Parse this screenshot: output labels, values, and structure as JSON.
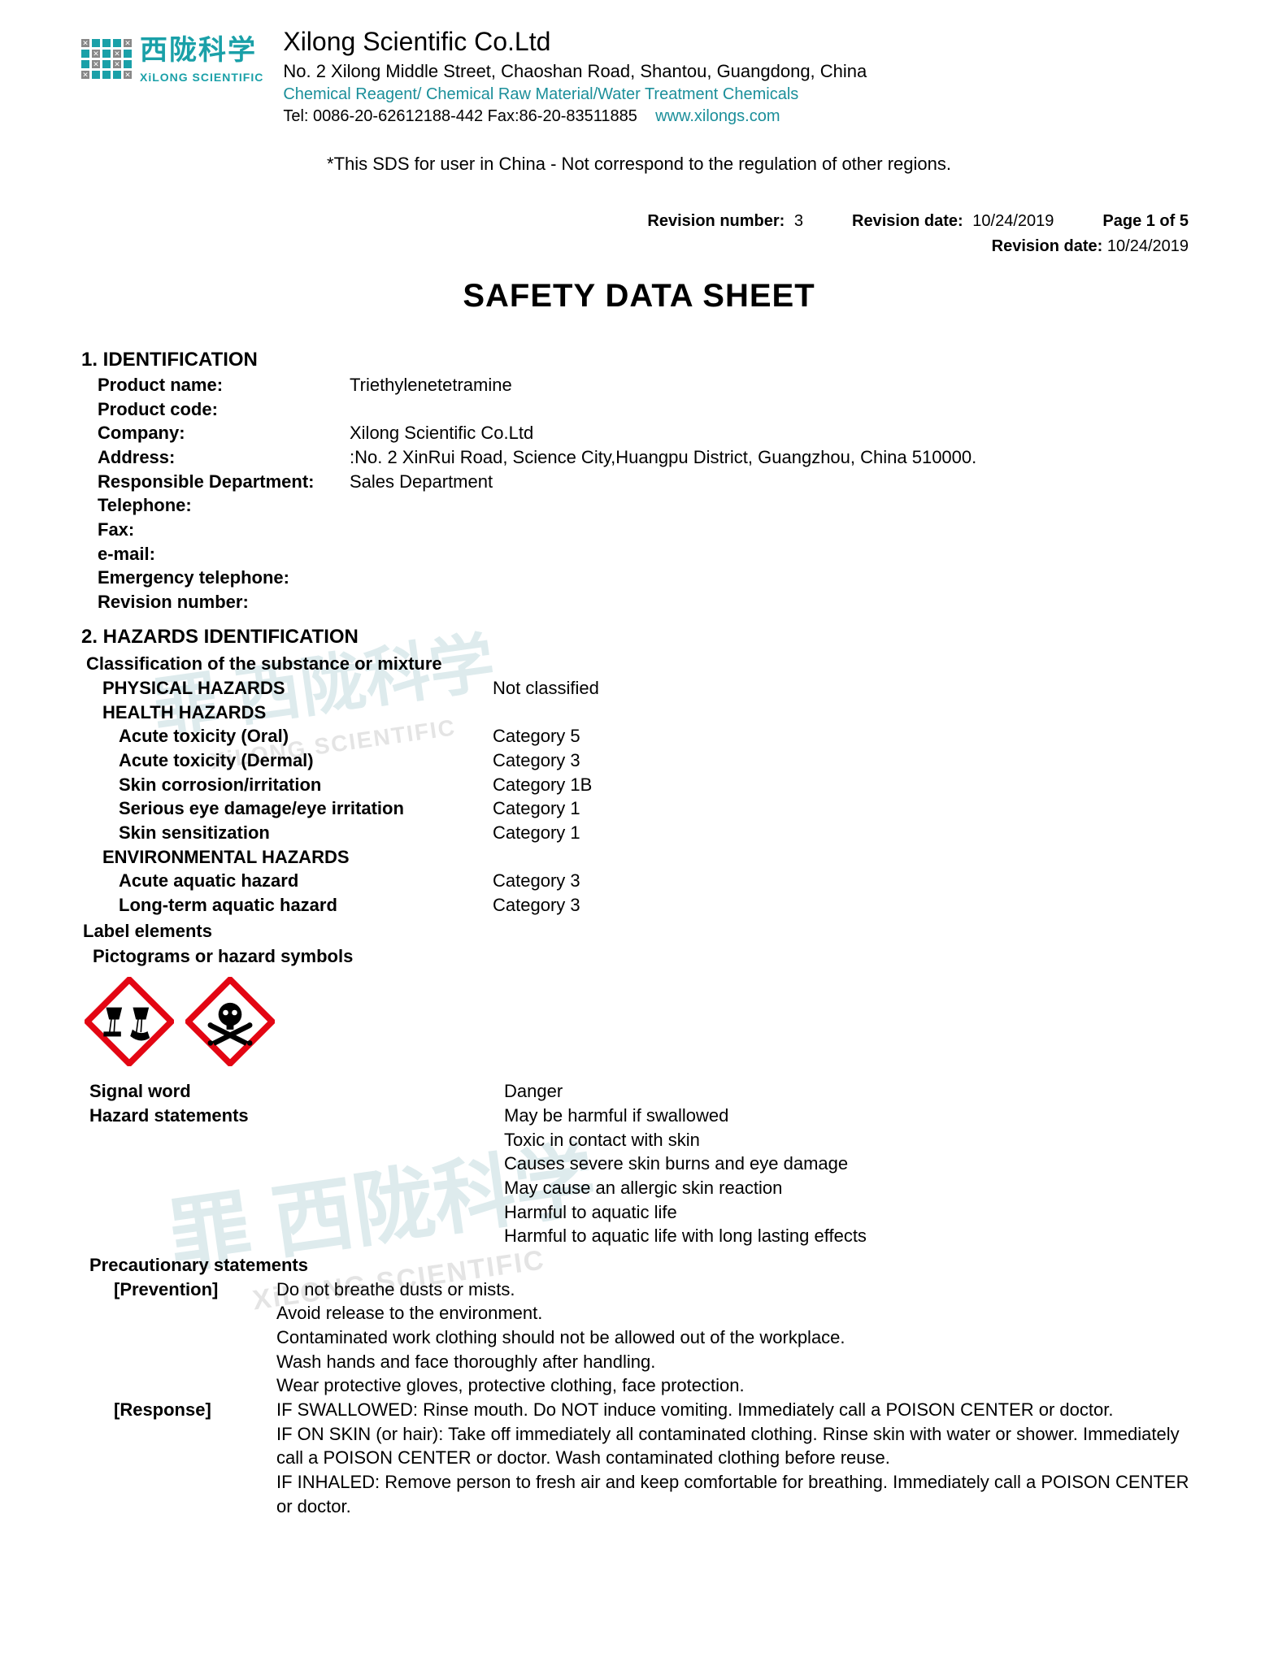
{
  "header": {
    "logo_cn": "西陇科学",
    "logo_en": "XiLONG SCIENTIFIC",
    "company_title": "Xilong Scientific Co.Ltd",
    "address": "No. 2 Xilong Middle Street, Chaoshan Road, Shantou, Guangdong, China",
    "subline": "Chemical Reagent/ Chemical Raw Material/Water Treatment Chemicals",
    "tel": "Tel: 0086-20-62612188-442  Fax:86-20-83511885",
    "url": "www.xilongs.com"
  },
  "disclaimer": "*This SDS for user in China - Not correspond to the regulation of other regions.",
  "meta": {
    "rev_num_label": "Revision number:",
    "rev_num": "3",
    "rev_date_label": "Revision date:",
    "rev_date": "10/24/2019",
    "page_label": "Page 1 of 5",
    "rev_date2_label": "Revision date:",
    "rev_date2": "10/24/2019"
  },
  "main_title": "SAFETY DATA SHEET",
  "section1": {
    "title": "1. IDENTIFICATION",
    "rows": [
      {
        "label": "Product name:",
        "value": "Triethylenetetramine"
      },
      {
        "label": "Product code:",
        "value": ""
      },
      {
        "label": "Company:",
        "value": "Xilong Scientific Co.Ltd"
      },
      {
        "label": "Address:",
        "value": ":No. 2 XinRui Road, Science City,Huangpu District, Guangzhou, China 510000."
      },
      {
        "label": "Responsible Department:",
        "value": "Sales Department"
      },
      {
        "label": "Telephone:",
        "value": ""
      },
      {
        "label": "Fax:",
        "value": ""
      },
      {
        "label": "e-mail:",
        "value": ""
      },
      {
        "label": "Emergency telephone:",
        "value": ""
      },
      {
        "label": "Revision number:",
        "value": ""
      }
    ]
  },
  "section2": {
    "title": "2. HAZARDS IDENTIFICATION",
    "classification_title": "Classification of the substance or mixture",
    "phys_label": "PHYSICAL HAZARDS",
    "phys_val": "Not classified",
    "health_label": "HEALTH HAZARDS",
    "health_rows": [
      {
        "label": "Acute toxicity (Oral)",
        "value": "Category 5"
      },
      {
        "label": "Acute toxicity (Dermal)",
        "value": "Category 3"
      },
      {
        "label": "Skin corrosion/irritation",
        "value": "Category 1B"
      },
      {
        "label": "Serious eye damage/eye irritation",
        "value": "Category 1"
      },
      {
        "label": "Skin sensitization",
        "value": "Category 1"
      }
    ],
    "env_label": "ENVIRONMENTAL HAZARDS",
    "env_rows": [
      {
        "label": "Acute aquatic hazard",
        "value": "Category 3"
      },
      {
        "label": "Long-term aquatic hazard",
        "value": "Category 3"
      }
    ],
    "label_elements": "Label elements",
    "pictograms_title": "Pictograms or hazard symbols",
    "signal_label": "Signal word",
    "signal_val": "Danger",
    "hazard_label": "Hazard statements",
    "hazard_stmts": [
      "May be harmful if swallowed",
      "Toxic in contact with skin",
      "Causes severe skin burns and eye damage",
      "May cause an allergic skin reaction",
      "Harmful to aquatic life",
      "Harmful to aquatic life with long lasting effects"
    ],
    "precaution_title": "Precautionary statements",
    "prevention_label": "[Prevention]",
    "prevention": [
      "Do not breathe dusts or mists.",
      "Avoid release to the environment.",
      "Contaminated work clothing should not be allowed out of the workplace.",
      "Wash hands and face thoroughly after handling.",
      "Wear protective gloves, protective clothing, face protection."
    ],
    "response_label": "[Response]",
    "response": [
      "IF SWALLOWED: Rinse mouth. Do NOT induce vomiting. Immediately call a POISON CENTER or doctor.",
      "IF ON SKIN (or hair): Take off immediately all contaminated clothing. Rinse skin with water or shower. Immediately call a POISON CENTER or doctor. Wash contaminated clothing before reuse.",
      "IF INHALED: Remove person to fresh air and keep comfortable for breathing. Immediately call a POISON CENTER or doctor."
    ]
  },
  "colors": {
    "brand": "#1aa0a8",
    "picto_border": "#e30613",
    "text": "#000000"
  }
}
